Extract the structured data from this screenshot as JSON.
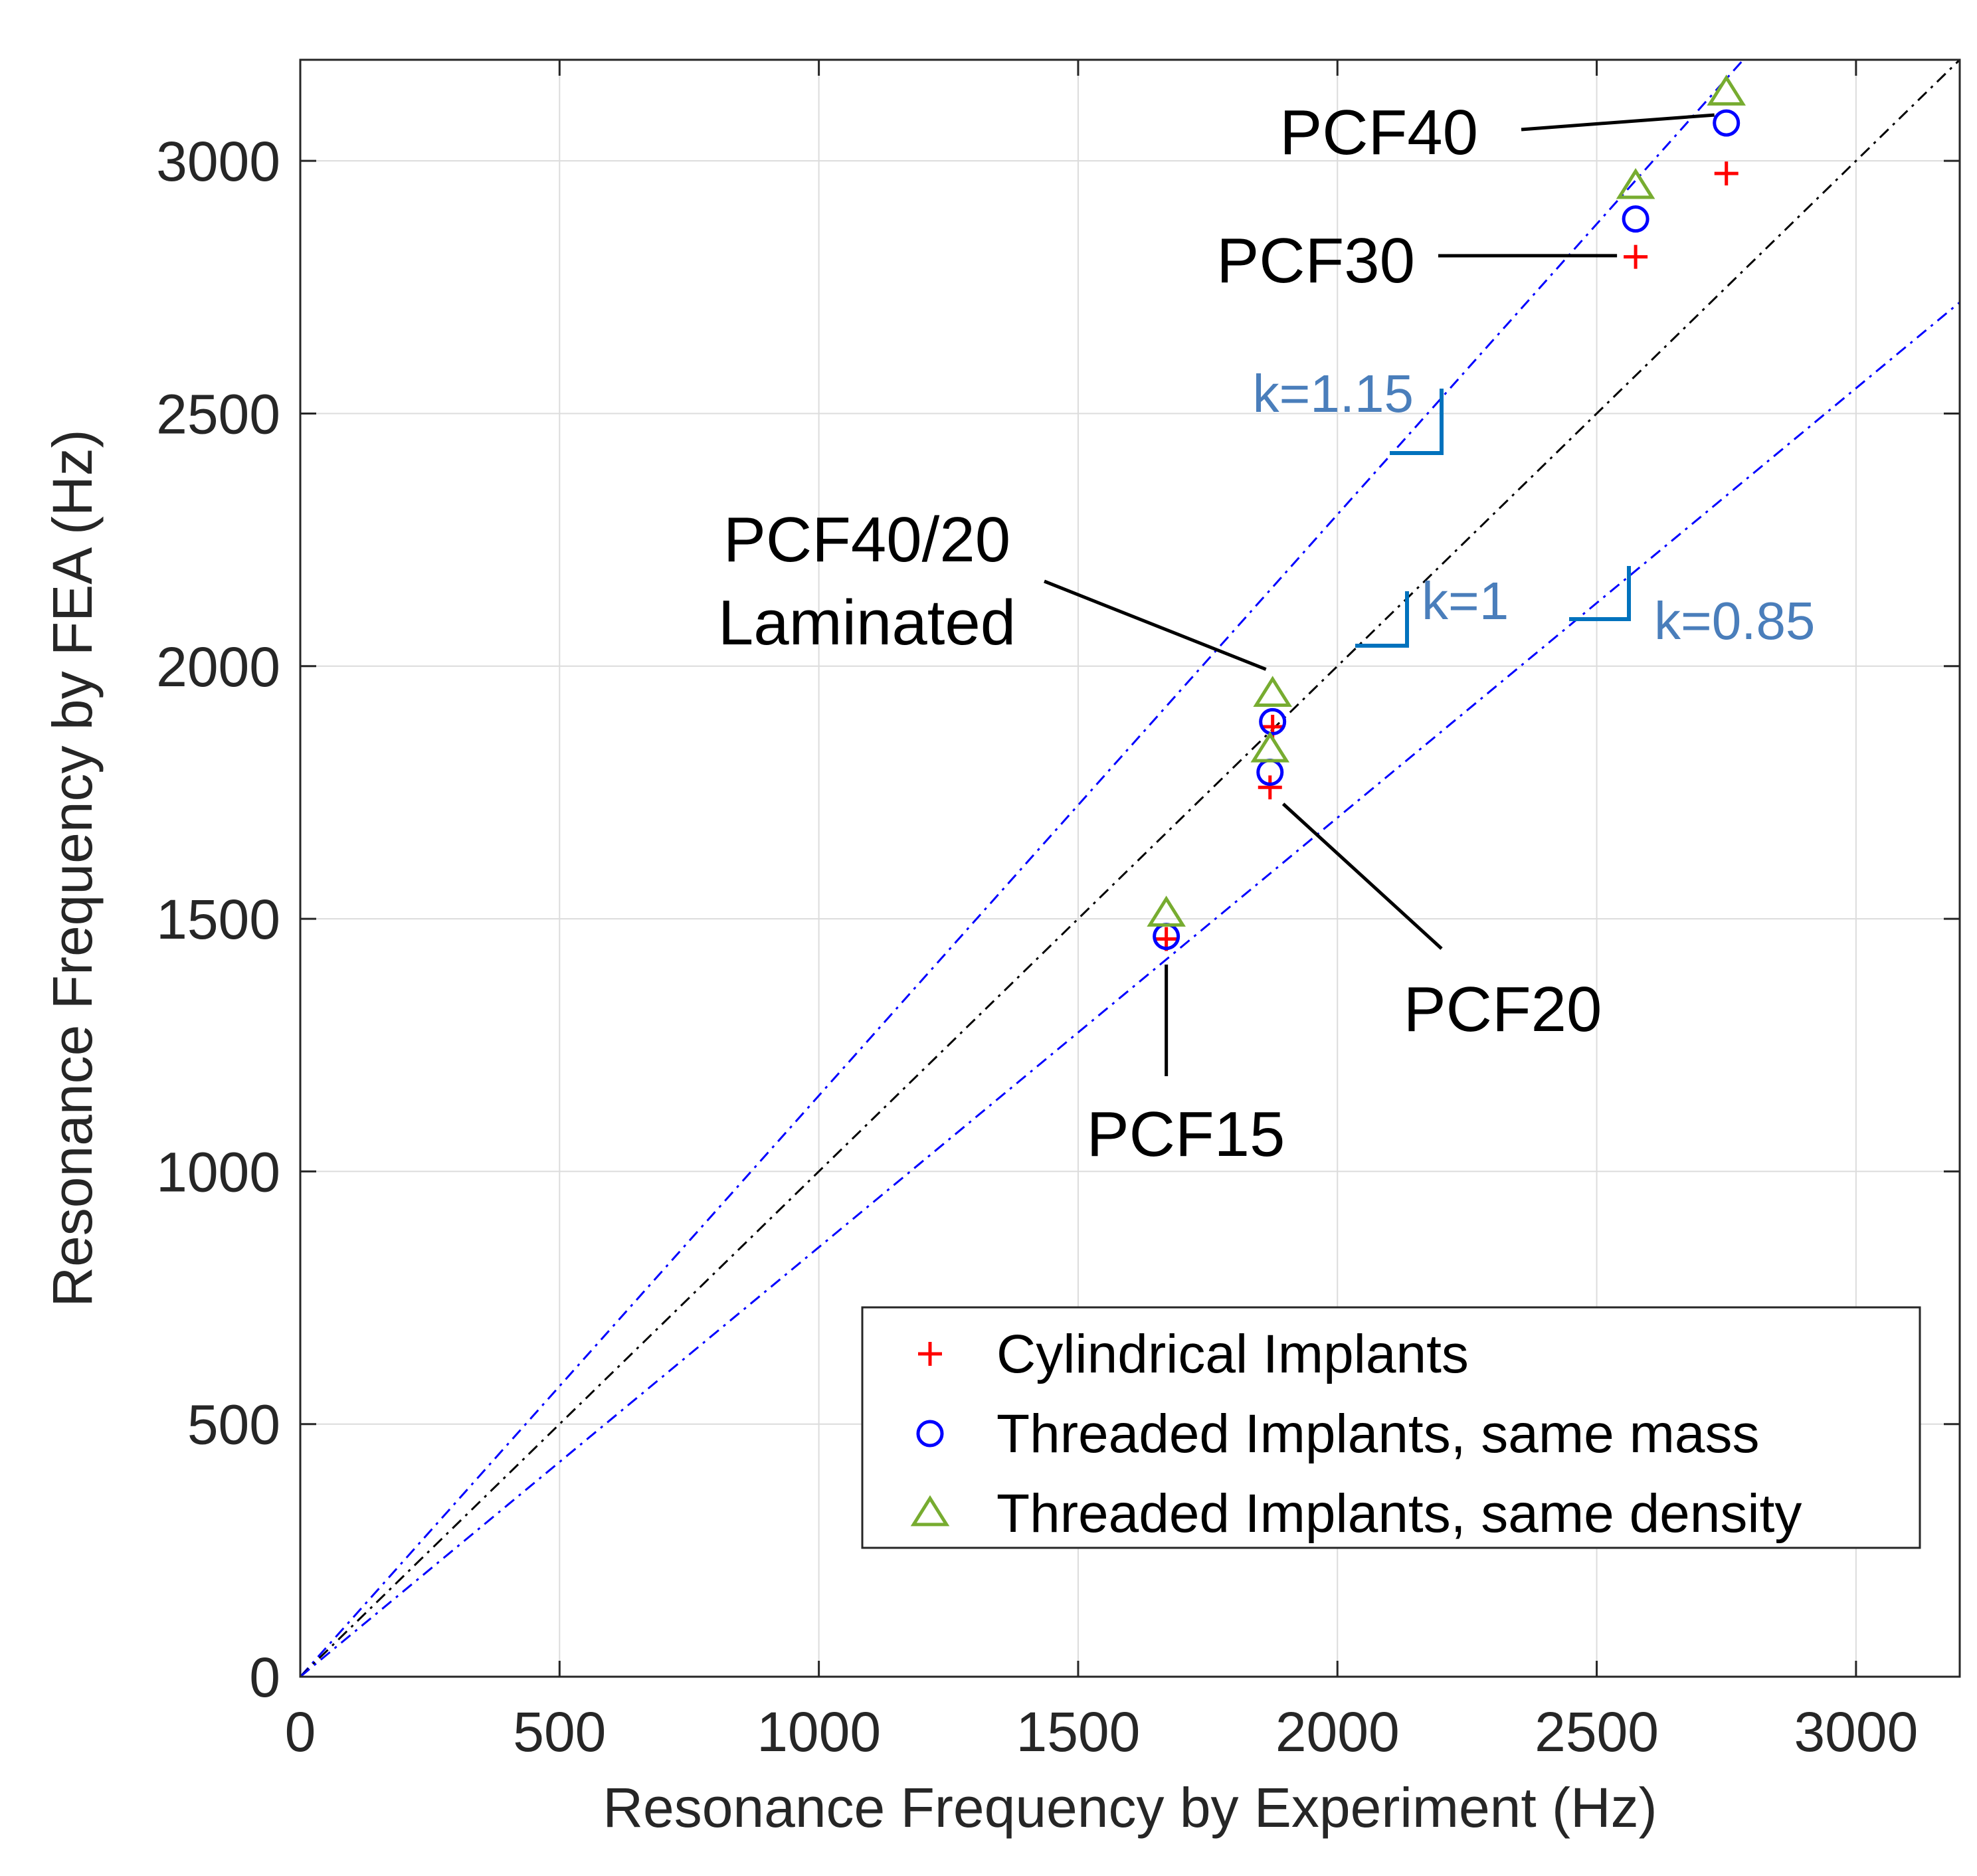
{
  "chart_data": {
    "type": "scatter",
    "title": "",
    "xlabel": "Resonance Frequency by Experiment (Hz)",
    "ylabel": "Resonance Frequency by FEA (Hz)",
    "xlim": [
      0,
      3200
    ],
    "ylim": [
      0,
      3200
    ],
    "xticks": [
      0,
      500,
      1000,
      1500,
      2000,
      2500,
      3000
    ],
    "yticks": [
      0,
      500,
      1000,
      1500,
      2000,
      2500,
      3000
    ],
    "xtick_labels": [
      "0",
      "500",
      "1000",
      "1500",
      "2000",
      "2500",
      "3000"
    ],
    "ytick_labels": [
      "0",
      "500",
      "1000",
      "1500",
      "2000",
      "2500",
      "3000"
    ],
    "grid": true,
    "legend_position": "bottom-right",
    "series": [
      {
        "name": "Cylindrical Implants",
        "marker": "plus",
        "color": "#ff0000",
        "x": [
          1670,
          1870,
          1875,
          2575,
          2750
        ],
        "y": [
          1460,
          1760,
          1880,
          2810,
          2975
        ]
      },
      {
        "name": "Threaded Implants, same mass",
        "marker": "circle",
        "color": "#0000ff",
        "x": [
          1670,
          1870,
          1875,
          2575,
          2750
        ],
        "y": [
          1465,
          1790,
          1890,
          2885,
          3075
        ]
      },
      {
        "name": "Threaded Implants, same density",
        "marker": "triangle",
        "color": "#77ac30",
        "x": [
          1670,
          1870,
          1875,
          2575,
          2750
        ],
        "y": [
          1510,
          1835,
          1945,
          2950,
          3135
        ]
      }
    ],
    "reference_lines": [
      {
        "label": "k=1.15",
        "slope": 1.15,
        "color": "#0000ff"
      },
      {
        "label": "k=1",
        "slope": 1.0,
        "color": "#000000"
      },
      {
        "label": "k=0.85",
        "slope": 0.85,
        "color": "#0000ff"
      }
    ],
    "slope_label_color": "#4a7ebb",
    "slope_marker_color": "#0072bd",
    "annotations": [
      {
        "label": "PCF40",
        "target_x": 2750,
        "target_y": 3075
      },
      {
        "label": "PCF30",
        "target_x": 2575,
        "target_y": 2815
      },
      {
        "label": "PCF40/20",
        "label_line2": "Laminated",
        "target_x": 1875,
        "target_y": 1970
      },
      {
        "label": "PCF20",
        "target_x": 1880,
        "target_y": 1730
      },
      {
        "label": "PCF15",
        "target_x": 1670,
        "target_y": 1380
      }
    ]
  }
}
